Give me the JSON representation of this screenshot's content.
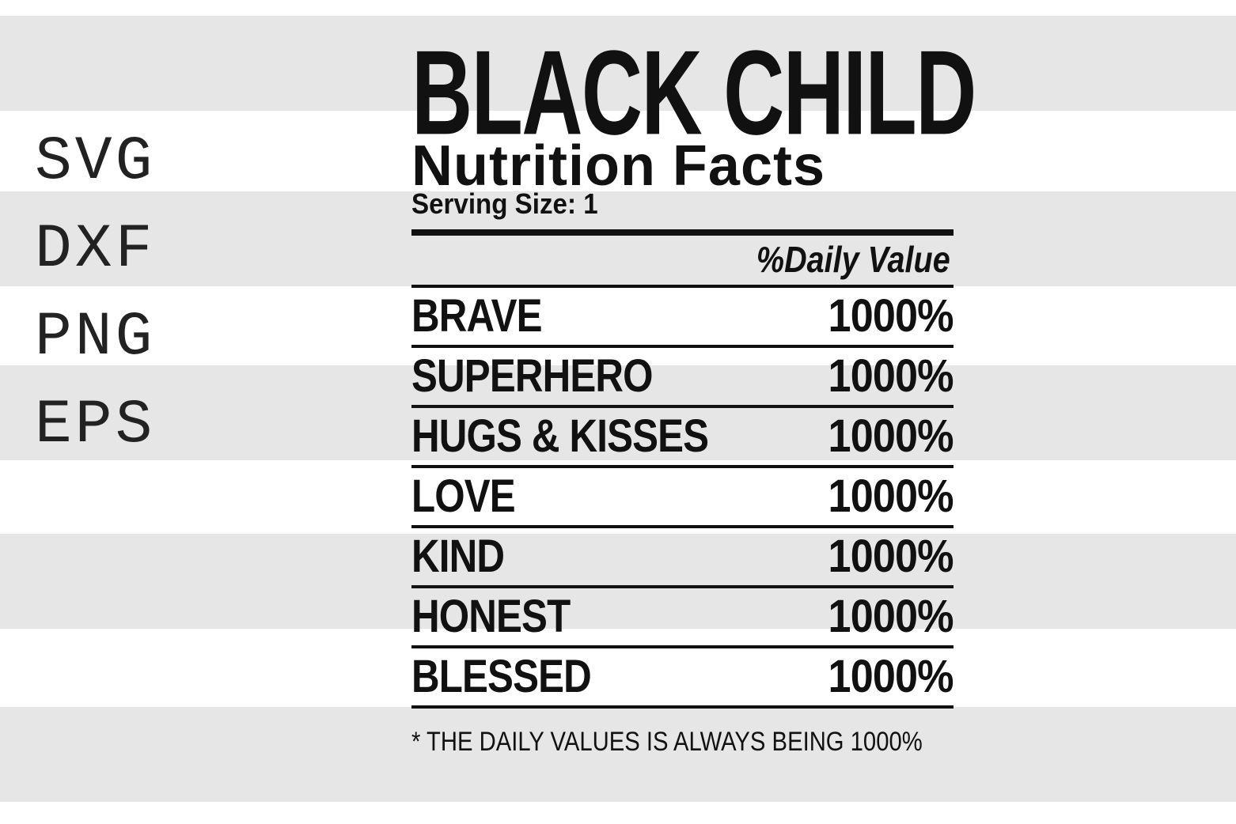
{
  "formats": [
    "SVG",
    "DXF",
    "PNG",
    "EPS"
  ],
  "label": {
    "title": "BLACK CHILD",
    "subtitle": "Nutrition Facts",
    "serving_size": "Serving Size: 1",
    "daily_value_header": "%Daily Value",
    "rows": [
      {
        "name": "BRAVE",
        "value": "1000%"
      },
      {
        "name": "SUPERHERO",
        "value": "1000%"
      },
      {
        "name": "HUGS & KISSES",
        "value": "1000%"
      },
      {
        "name": "LOVE",
        "value": "1000%"
      },
      {
        "name": "KIND",
        "value": "1000%"
      },
      {
        "name": "HONEST",
        "value": "1000%"
      },
      {
        "name": "BLESSED",
        "value": "1000%"
      }
    ],
    "footnote": "* THE DAILY VALUES IS ALWAYS BEING 1000%"
  },
  "colors": {
    "ink": "#111111",
    "stripe": "#e6e6e6",
    "background": "#ffffff"
  }
}
